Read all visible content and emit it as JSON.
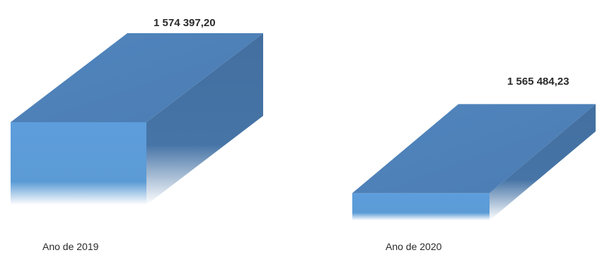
{
  "chart_data": {
    "type": "bar",
    "style": "3d-box",
    "categories": [
      "Ano de 2019",
      "Ano de 2020"
    ],
    "values": [
      1574397.2,
      1565484.23
    ],
    "value_labels": [
      "1 574 397,20",
      "1 565 484,23"
    ],
    "colors": {
      "front": "#5b9bd5",
      "top": "#4f7fb8",
      "side": "#416e9e"
    }
  }
}
